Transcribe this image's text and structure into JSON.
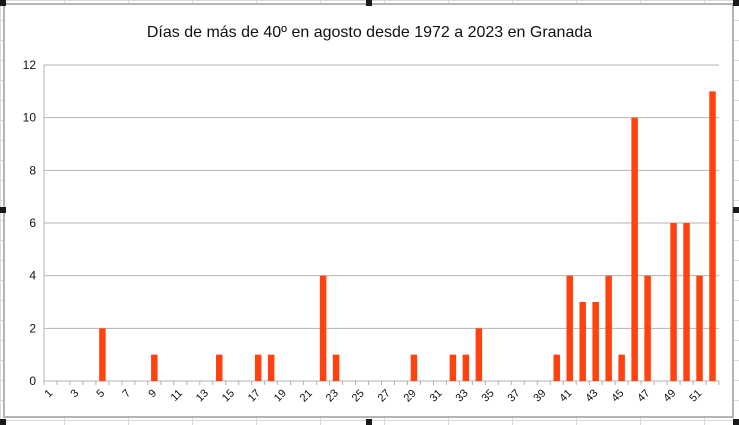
{
  "chart_data": {
    "type": "bar",
    "title": "Días de más de 40º en agosto desde 1972 a 2023 en Granada",
    "xlabel": "",
    "ylabel": "",
    "ylim": [
      0,
      12
    ],
    "yticks": [
      "0",
      "2",
      "4",
      "6",
      "8",
      "10",
      "12"
    ],
    "xtick_labels": [
      "1",
      "3",
      "5",
      "7",
      "9",
      "11",
      "13",
      "15",
      "17",
      "19",
      "21",
      "23",
      "25",
      "27",
      "29",
      "31",
      "33",
      "35",
      "37",
      "39",
      "41",
      "43",
      "45",
      "47",
      "49",
      "51"
    ],
    "categories": [
      1,
      2,
      3,
      4,
      5,
      6,
      7,
      8,
      9,
      10,
      11,
      12,
      13,
      14,
      15,
      16,
      17,
      18,
      19,
      20,
      21,
      22,
      23,
      24,
      25,
      26,
      27,
      28,
      29,
      30,
      31,
      32,
      33,
      34,
      35,
      36,
      37,
      38,
      39,
      40,
      41,
      42,
      43,
      44,
      45,
      46,
      47,
      48,
      49,
      50,
      51,
      52
    ],
    "values": [
      0,
      0,
      0,
      0,
      2,
      0,
      0,
      0,
      1,
      0,
      0,
      0,
      0,
      1,
      0,
      0,
      1,
      1,
      0,
      0,
      0,
      4,
      1,
      0,
      0,
      0,
      0,
      0,
      1,
      0,
      0,
      1,
      1,
      2,
      0,
      0,
      0,
      0,
      0,
      1,
      4,
      3,
      3,
      4,
      1,
      10,
      4,
      0,
      6,
      6,
      4,
      11
    ],
    "grid": true,
    "legend": "none",
    "bar_color": "#ff420e",
    "grid_color": "#b3b3b3"
  }
}
